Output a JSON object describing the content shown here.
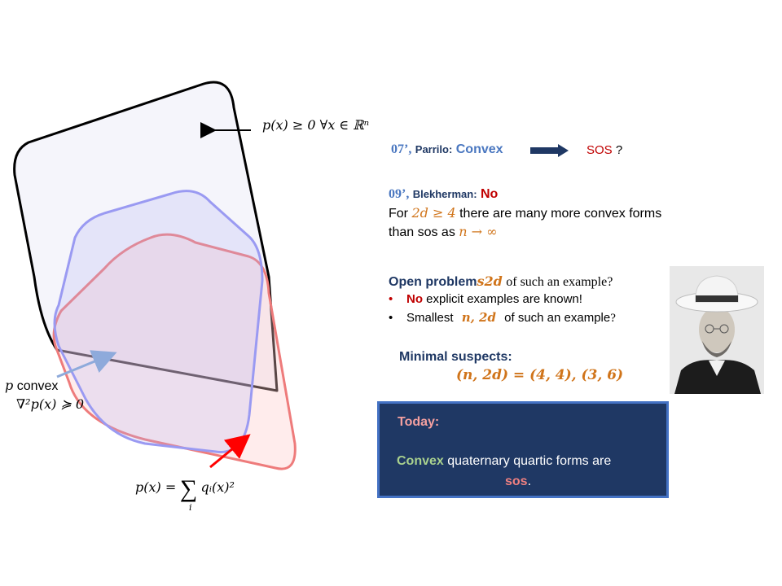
{
  "diagram": {
    "nonneg_label": "p(x) ≥ 0 ∀x ∈ ℝⁿ",
    "convex_label_p": "p",
    "convex_label_word": "convex",
    "hessian_label": "∇²p(x) ≽ 0",
    "sos_label_lhs": "p(x) =",
    "sos_label_sum": "∑",
    "sos_label_index": "i",
    "sos_label_rhs": "qᵢ(x)²",
    "colors": {
      "nonneg": "#000000",
      "convex": "#8f8ff0",
      "sos": "#ee7b7b"
    }
  },
  "parrilo": {
    "year": "07’,",
    "name": "Parrilo:",
    "convex": "Convex",
    "sos": "SOS",
    "question": "?"
  },
  "blekherman": {
    "year": "09’,",
    "name": "Blekherman:",
    "answer": "No",
    "line1_pre": "For",
    "line1_math": "2d ≥ 4",
    "line1_post": "there are many more convex forms",
    "line2_pre": "than sos as",
    "line2_math": "n → ∞"
  },
  "open_problems": {
    "title_bold": "Open problem",
    "title_overlap": "s2d",
    "title_rest": "of such an example?",
    "bullet1_bold": "No",
    "bullet1_rest": "explicit examples are known!",
    "bullet2_pre": "Smallest",
    "bullet2_math": "n, 2d",
    "bullet2_post": "of such an example",
    "bullet2_q": "?"
  },
  "suspects": {
    "title": "Minimal suspects:",
    "formula": "(n, 2d) = (4, 4), (3, 6)"
  },
  "today": {
    "title": "Today:",
    "convex": "Convex",
    "rest": "quaternary quartic forms are",
    "sos": "sos",
    "period": "."
  },
  "photo": {
    "subject": "portrait-photo"
  }
}
